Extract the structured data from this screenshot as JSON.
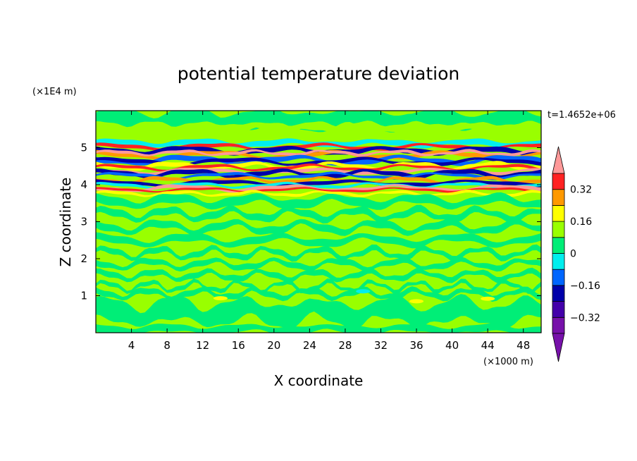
{
  "chart_data": {
    "type": "heatmap",
    "title": "potential temperature deviation",
    "time_label": "t=1.4652e+06",
    "xlabel": "X coordinate",
    "ylabel": "Z coordinate",
    "x_unit": "(×1000 m)",
    "y_unit": "(×1E4 m)",
    "xlim": [
      0,
      50
    ],
    "ylim": [
      0,
      6
    ],
    "x_ticks": [
      4,
      8,
      12,
      16,
      20,
      24,
      28,
      32,
      36,
      40,
      44,
      48
    ],
    "y_ticks": [
      1,
      2,
      3,
      4,
      5
    ],
    "colorbar": {
      "levels": [
        -0.4,
        -0.36,
        -0.32,
        -0.28,
        -0.24,
        -0.2,
        -0.16,
        -0.12,
        -0.08,
        -0.04,
        0,
        0.04,
        0.08,
        0.12,
        0.16,
        0.2,
        0.24,
        0.28,
        0.32,
        0.36,
        0.4
      ],
      "labels": [
        "0.32",
        "0.16",
        "0",
        "−0.16",
        "−0.32"
      ],
      "label_values": [
        0.32,
        0.16,
        0,
        -0.16,
        -0.32
      ],
      "range": [
        -0.4,
        0.4
      ],
      "colors": [
        "#99ff00",
        "#00ee77",
        "#00eeee",
        "#0066ff",
        "#0000aa",
        "#4400aa",
        "#7711aa",
        "#ff9999",
        "#ff2222",
        "#ff9900",
        "#ffff00"
      ],
      "extend": "both"
    },
    "field_bands": [
      {
        "z_range": [
          0.0,
          1.5
        ],
        "description": "weak deviations near 0 with small positive patches"
      },
      {
        "z_range": [
          1.5,
          3.6
        ],
        "description": "layered near-zero values"
      },
      {
        "z_range": [
          3.6,
          5.2
        ],
        "description": "strong alternating layers between -0.4 and 0.4"
      },
      {
        "z_range": [
          5.2,
          6.0
        ],
        "description": "near-zero values"
      }
    ]
  }
}
